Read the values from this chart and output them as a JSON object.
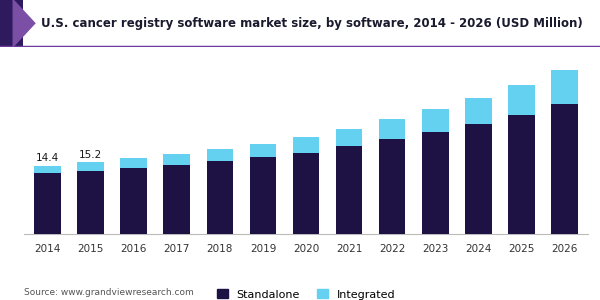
{
  "title": "U.S. cancer registry software market size, by software, 2014 - 2026 (USD Million)",
  "years": [
    2014,
    2015,
    2016,
    2017,
    2018,
    2019,
    2020,
    2021,
    2022,
    2023,
    2024,
    2025,
    2026
  ],
  "standalone": [
    12.8,
    13.3,
    13.9,
    14.6,
    15.4,
    16.2,
    17.2,
    18.5,
    20.0,
    21.5,
    23.2,
    25.2,
    27.5
  ],
  "integrated": [
    1.6,
    1.9,
    2.1,
    2.3,
    2.6,
    2.9,
    3.3,
    3.7,
    4.2,
    4.8,
    5.5,
    6.3,
    7.2
  ],
  "annotations": {
    "2014": "14.4",
    "2015": "15.2"
  },
  "standalone_color": "#1e1245",
  "integrated_color": "#63d1ef",
  "background_color": "#ffffff",
  "source": "Source: www.grandviewresearch.com",
  "legend_standalone": "Standalone",
  "legend_integrated": "Integrated",
  "title_color": "#1a1a2e",
  "header_bg": "#ffffff",
  "header_accent1": "#2d1b5e",
  "header_accent2": "#7b4fa6",
  "header_line_color": "#6a3d9a",
  "ylim": [
    0,
    38
  ]
}
